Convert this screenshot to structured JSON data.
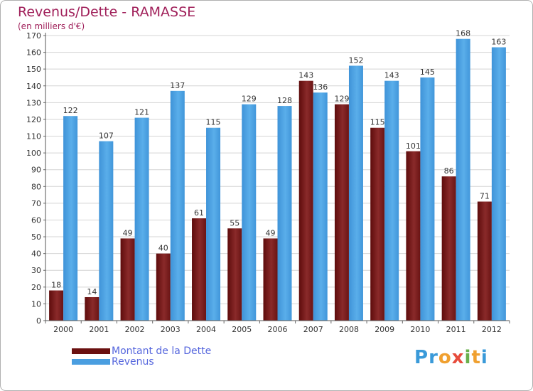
{
  "title": "Revenus/Dette - RAMASSE",
  "subtitle": "(en milliers d'€)",
  "legend": {
    "debt": "Montant de la Dette",
    "revenue": "Revenus"
  },
  "logo": {
    "letters": [
      "P",
      "r",
      "o",
      "x",
      "i",
      "t",
      "i"
    ],
    "colors": [
      "#3a9ad9",
      "#3a9ad9",
      "#f0a030",
      "#e74c3c",
      "#6ab04c",
      "#f0a030",
      "#3a9ad9"
    ]
  },
  "colors": {
    "debt": "#7a1a1a",
    "revenue": "#4a9ee0",
    "title": "#a0205a",
    "grid": "#d4d4d4"
  },
  "chart_data": {
    "type": "bar",
    "categories": [
      "2000",
      "2001",
      "2002",
      "2003",
      "2004",
      "2005",
      "2006",
      "2007",
      "2008",
      "2009",
      "2010",
      "2011",
      "2012"
    ],
    "series": [
      {
        "name": "Montant de la Dette",
        "values": [
          18,
          14,
          49,
          40,
          61,
          55,
          49,
          143,
          129,
          115,
          101,
          86,
          71
        ]
      },
      {
        "name": "Revenus",
        "values": [
          122,
          107,
          121,
          137,
          115,
          129,
          128,
          136,
          152,
          143,
          145,
          168,
          163
        ]
      }
    ],
    "yticks": [
      0,
      10,
      20,
      30,
      40,
      50,
      60,
      70,
      80,
      90,
      100,
      110,
      120,
      130,
      140,
      150,
      160,
      170
    ],
    "ylim": [
      0,
      170
    ],
    "grid": true,
    "legend_position": "bottom-left"
  }
}
